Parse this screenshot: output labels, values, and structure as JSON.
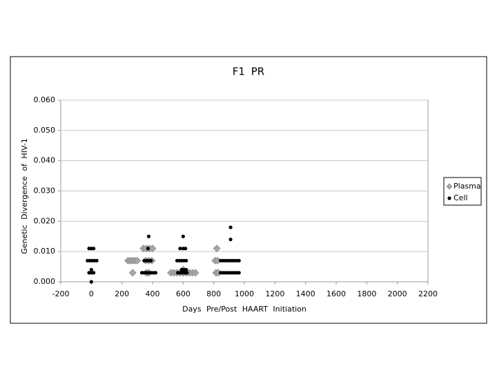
{
  "chart_data": {
    "type": "scatter",
    "title": "F1 PR",
    "x_label": "Days Pre/Post HAART Initiation",
    "y_label": "Genetic Divergence of HIV-1",
    "xlim": [
      -200,
      2200
    ],
    "xticks": [
      -200,
      0,
      200,
      400,
      600,
      800,
      1000,
      1200,
      1400,
      1600,
      1800,
      2000,
      2200
    ],
    "ylim": [
      0,
      0.06
    ],
    "yticks": [
      {
        "value": 0,
        "label": "0.000"
      },
      {
        "value": 0.01,
        "label": "0.010"
      },
      {
        "value": 0.02,
        "label": "0.020"
      },
      {
        "value": 0.03,
        "label": "0.030"
      },
      {
        "value": 0.04,
        "label": "0.040"
      },
      {
        "value": 0.05,
        "label": "0.050"
      },
      {
        "value": 0.06,
        "label": "0.060"
      }
    ],
    "grid": true,
    "legend": "right",
    "series": [
      {
        "name": "Plasma",
        "color": "#a6a6a6",
        "marker": "diamond",
        "x": [
          240,
          255,
          270,
          285,
          300,
          270,
          340,
          360,
          380,
          400,
          355,
          375,
          395,
          360,
          375,
          520,
          540,
          560,
          580,
          600,
          620,
          640,
          660,
          680,
          600,
          820,
          810,
          825,
          815,
          830
        ],
        "values": [
          0.007,
          0.007,
          0.007,
          0.007,
          0.007,
          0.003,
          0.011,
          0.011,
          0.011,
          0.011,
          0.007,
          0.007,
          0.007,
          0.003,
          0.003,
          0.003,
          0.003,
          0.003,
          0.003,
          0.003,
          0.003,
          0.003,
          0.003,
          0.003,
          0.004,
          0.011,
          0.007,
          0.007,
          0.003,
          0.003
        ]
      },
      {
        "name": "Cell",
        "color": "#000000",
        "marker": "circle",
        "x": [
          -15,
          0,
          15,
          -25,
          -10,
          5,
          20,
          35,
          0,
          -15,
          0,
          15,
          0,
          375,
          370,
          345,
          360,
          375,
          390,
          330,
          345,
          360,
          375,
          390,
          405,
          420,
          600,
          580,
          600,
          615,
          560,
          575,
          590,
          605,
          620,
          590,
          605,
          620,
          565,
          580,
          595,
          610,
          625,
          910,
          910,
          845,
          860,
          875,
          890,
          905,
          920,
          935,
          950,
          965,
          845,
          860,
          875,
          890,
          905,
          920,
          935,
          950,
          965
        ],
        "values": [
          0.011,
          0.011,
          0.011,
          0.007,
          0.007,
          0.007,
          0.007,
          0.007,
          0.004,
          0.003,
          0.003,
          0.003,
          0,
          0.015,
          0.011,
          0.007,
          0.007,
          0.007,
          0.007,
          0.003,
          0.003,
          0.003,
          0.003,
          0.003,
          0.003,
          0.003,
          0.015,
          0.011,
          0.011,
          0.011,
          0.007,
          0.007,
          0.007,
          0.007,
          0.007,
          0.004,
          0.004,
          0.004,
          0.003,
          0.003,
          0.003,
          0.003,
          0.003,
          0.018,
          0.014,
          0.007,
          0.007,
          0.007,
          0.007,
          0.007,
          0.007,
          0.007,
          0.007,
          0.007,
          0.003,
          0.003,
          0.003,
          0.003,
          0.003,
          0.003,
          0.003,
          0.003,
          0.003
        ]
      }
    ]
  }
}
